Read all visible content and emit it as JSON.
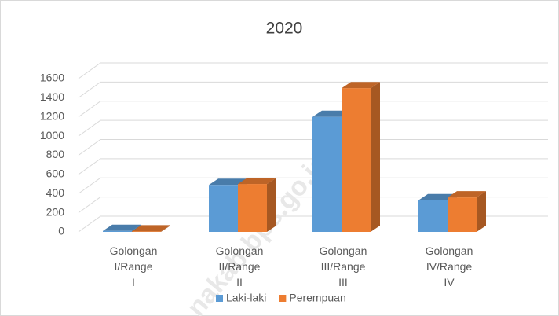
{
  "chart_data": {
    "type": "bar3d",
    "title": "2020",
    "categories": [
      "Golongan I/Range I",
      "Golongan II/Range II",
      "Golongan III/Range III",
      "Golongan IV/Range IV"
    ],
    "series": [
      {
        "name": "Laki-laki",
        "color": "#5b9bd5",
        "values": [
          10,
          490,
          1200,
          330
        ]
      },
      {
        "name": "Perempuan",
        "color": "#ed7d31",
        "values": [
          5,
          500,
          1500,
          360
        ]
      }
    ],
    "ylim": [
      0,
      1600
    ],
    "yticks": [
      0,
      200,
      400,
      600,
      800,
      1000,
      1200,
      1400,
      1600
    ],
    "grid": true,
    "legend": "bottom",
    "watermark": "nakab.bps.go.id"
  }
}
